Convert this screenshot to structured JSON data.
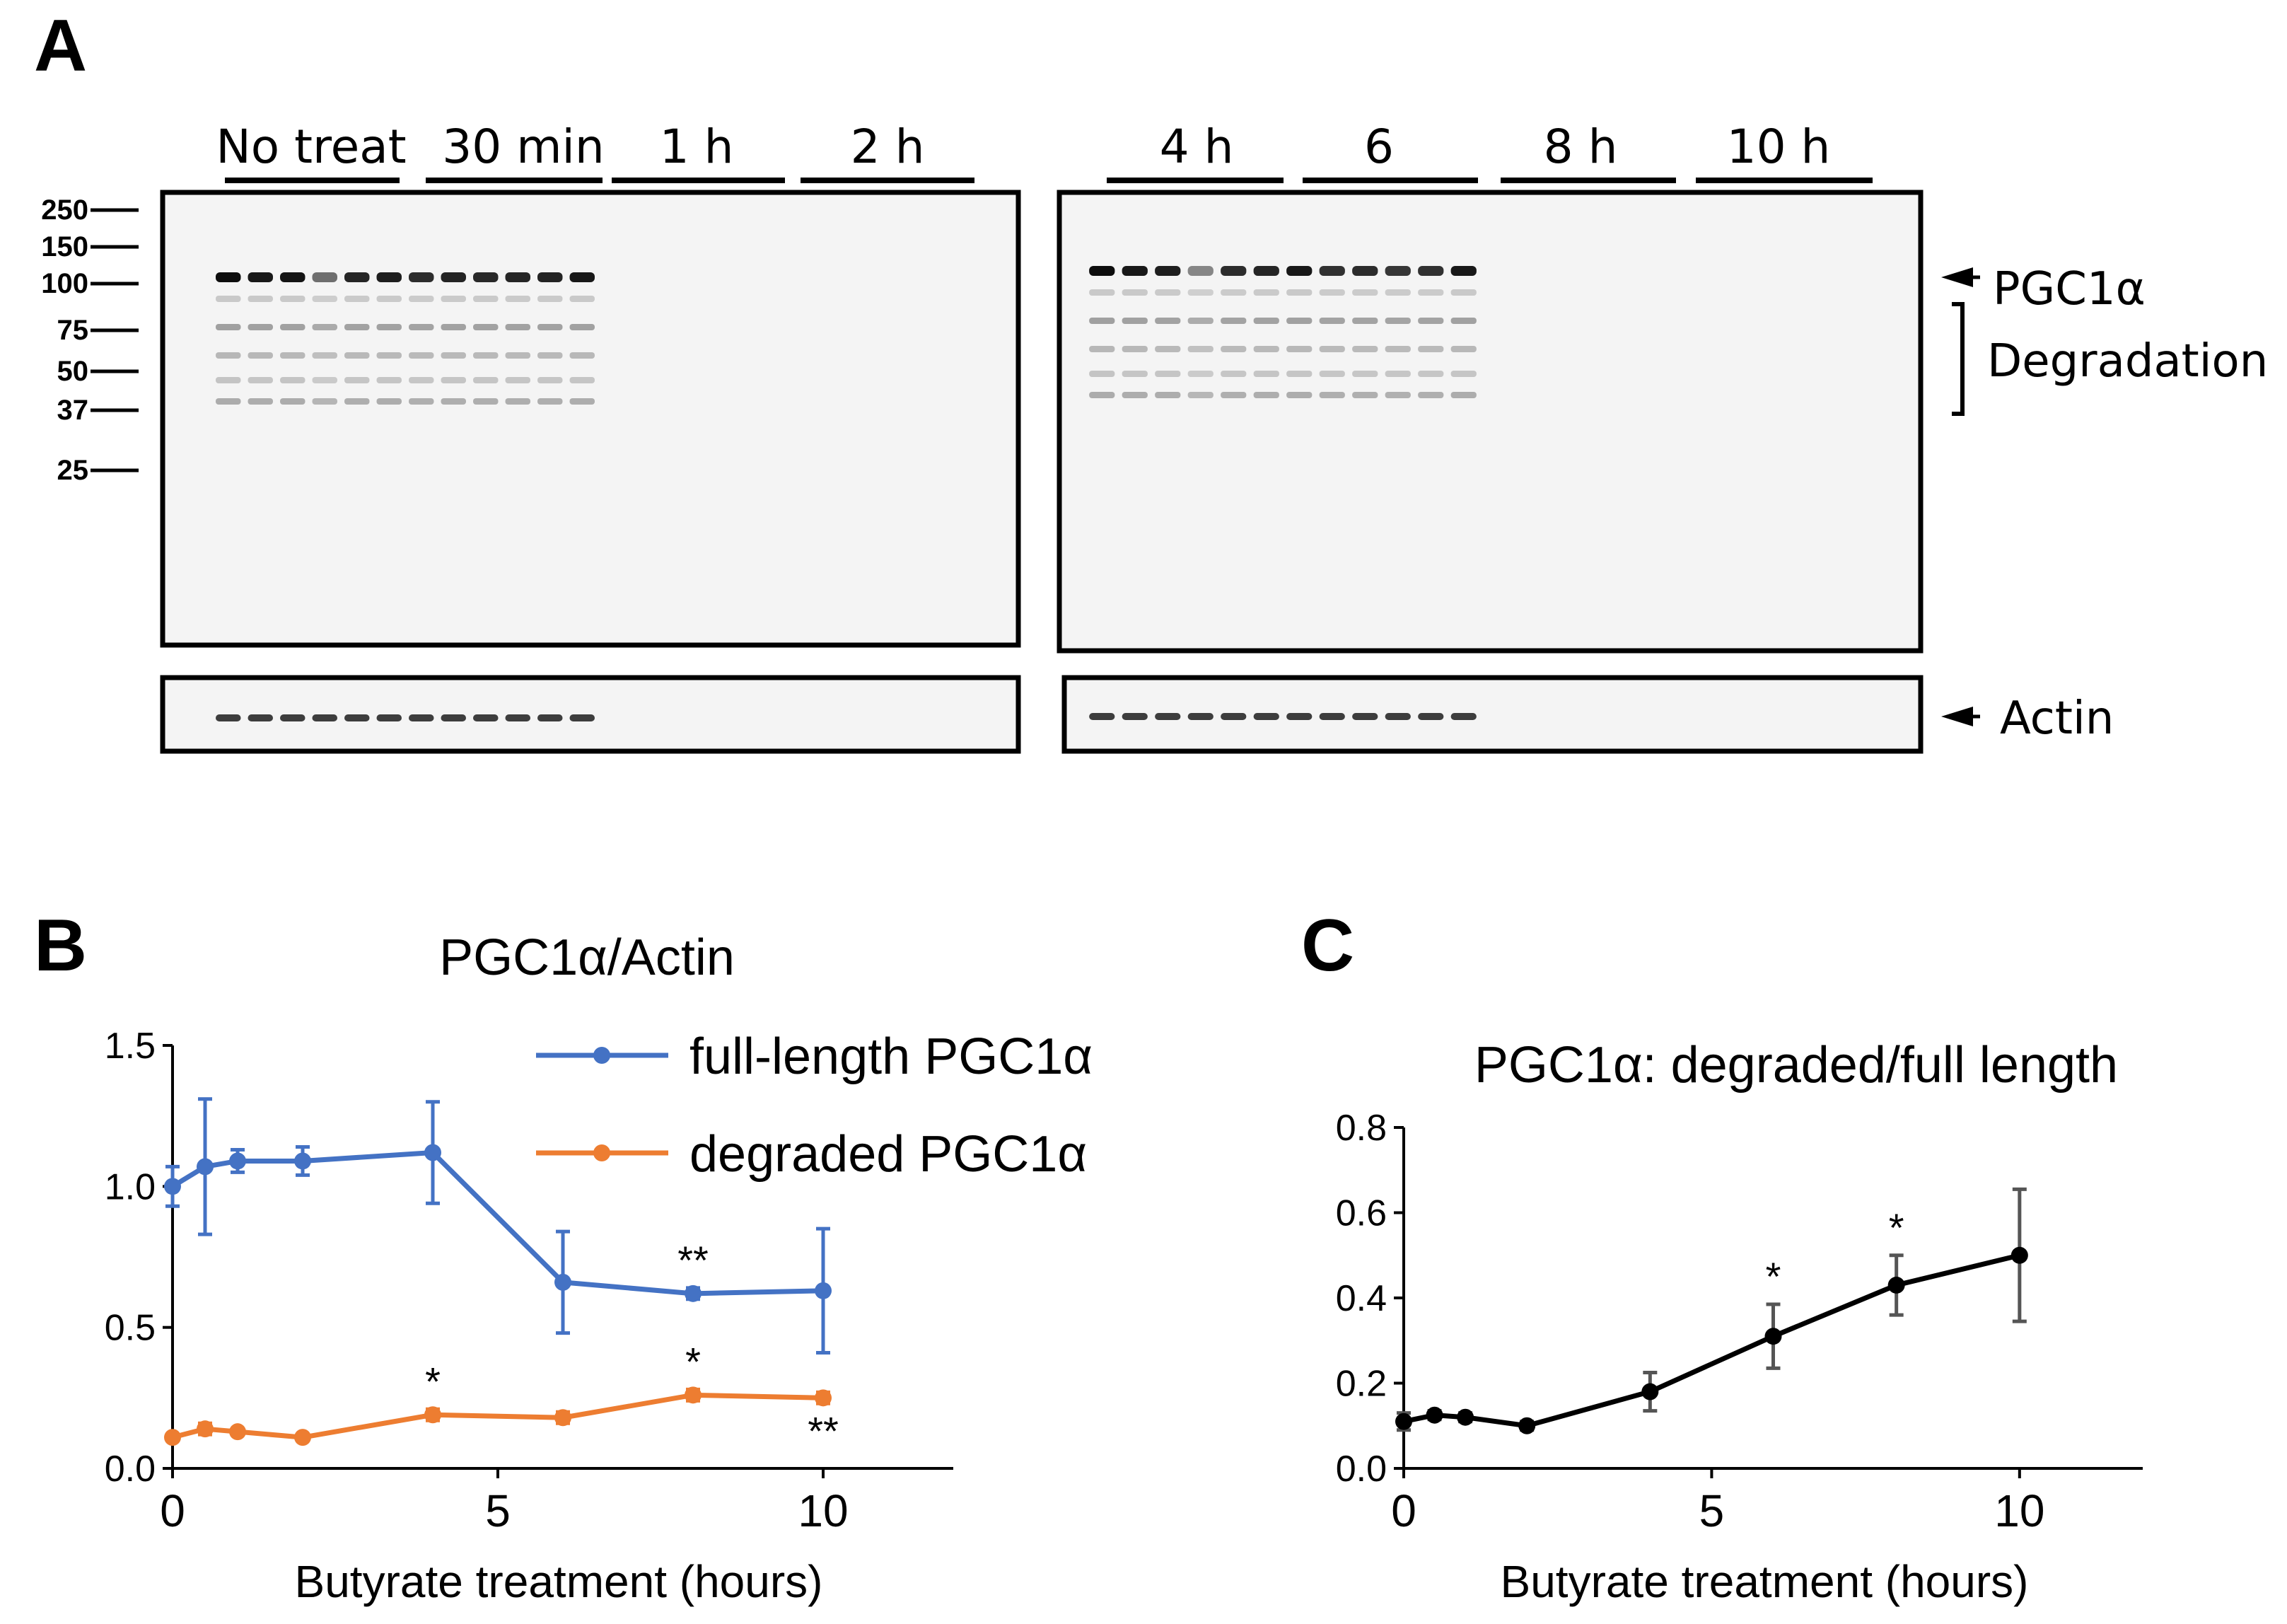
{
  "panels": {
    "A": "A",
    "B": "B",
    "C": "C"
  },
  "blot": {
    "lane_groups_left": [
      "No treat",
      "30 min",
      "1 h",
      "2 h"
    ],
    "lane_groups_right": [
      "4 h",
      "6",
      "8 h",
      "10 h"
    ],
    "mw_markers": [
      "250",
      "150",
      "100",
      "75",
      "50",
      "37",
      "25"
    ],
    "labels": {
      "pgc1a": "PGC1α",
      "degradation": "Degradation",
      "actin": "Actin"
    },
    "pgc_band_intensity_left": [
      0.95,
      0.9,
      0.92,
      0.55,
      0.85,
      0.88,
      0.82,
      0.86,
      0.84,
      0.85,
      0.86,
      0.9
    ],
    "pgc_band_intensity_right": [
      0.95,
      0.9,
      0.88,
      0.45,
      0.82,
      0.85,
      0.9,
      0.8,
      0.82,
      0.78,
      0.8,
      0.9
    ]
  },
  "chart_data": [
    {
      "type": "line",
      "title": "PGC1α/Actin",
      "xlabel": "Butyrate treatment (hours)",
      "ylabel": "",
      "xlim": [
        0,
        12
      ],
      "ylim": [
        0,
        1.5
      ],
      "xticks": [
        "0",
        "5",
        "10"
      ],
      "yticks": [
        "0.0",
        "0.5",
        "1.0",
        "1.5"
      ],
      "legend": "top-right",
      "series": [
        {
          "name": "full-length PGC1α",
          "color": "#4472C4",
          "x": [
            0,
            0.5,
            1,
            2,
            4,
            6,
            8,
            10
          ],
          "y": [
            1.0,
            1.07,
            1.09,
            1.09,
            1.12,
            0.66,
            0.62,
            0.63
          ],
          "err": [
            0.07,
            0.24,
            0.04,
            0.05,
            0.18,
            0.18,
            0.02,
            0.22
          ]
        },
        {
          "name": "degraded PGC1α",
          "color": "#ED7D31",
          "x": [
            0,
            0.5,
            1,
            2,
            4,
            6,
            8,
            10
          ],
          "y": [
            0.11,
            0.14,
            0.13,
            0.11,
            0.19,
            0.18,
            0.26,
            0.25
          ],
          "err": [
            0.01,
            0.02,
            0.01,
            0.01,
            0.02,
            0.02,
            0.02,
            0.02
          ]
        }
      ],
      "annotations": [
        {
          "text": "**",
          "x": 8,
          "y": 0.62,
          "series": "full-length PGC1α",
          "pos": "above"
        },
        {
          "text": "*",
          "x": 4,
          "y": 0.19,
          "series": "degraded PGC1α",
          "pos": "above"
        },
        {
          "text": "*",
          "x": 8,
          "y": 0.26,
          "series": "degraded PGC1α",
          "pos": "above"
        },
        {
          "text": "**",
          "x": 10,
          "y": 0.25,
          "series": "degraded PGC1α",
          "pos": "below"
        }
      ]
    },
    {
      "type": "line",
      "title": "PGC1α: degraded/full length",
      "xlabel": "Butyrate treatment (hours)",
      "ylabel": "",
      "xlim": [
        0,
        12
      ],
      "ylim": [
        0,
        0.8
      ],
      "xticks": [
        "0",
        "5",
        "10"
      ],
      "yticks": [
        "0.0",
        "0.2",
        "0.4",
        "0.6",
        "0.8"
      ],
      "series": [
        {
          "name": "degraded/full length",
          "color": "#000000",
          "x": [
            0,
            0.5,
            1,
            2,
            4,
            6,
            8,
            10
          ],
          "y": [
            0.11,
            0.125,
            0.12,
            0.1,
            0.18,
            0.31,
            0.43,
            0.5
          ],
          "err": [
            0.02,
            0.01,
            0.01,
            0.01,
            0.045,
            0.075,
            0.07,
            0.155
          ]
        }
      ],
      "annotations": [
        {
          "text": "*",
          "x": 6,
          "y": 0.31,
          "pos": "above"
        },
        {
          "text": "*",
          "x": 8,
          "y": 0.43,
          "pos": "above"
        }
      ]
    }
  ]
}
